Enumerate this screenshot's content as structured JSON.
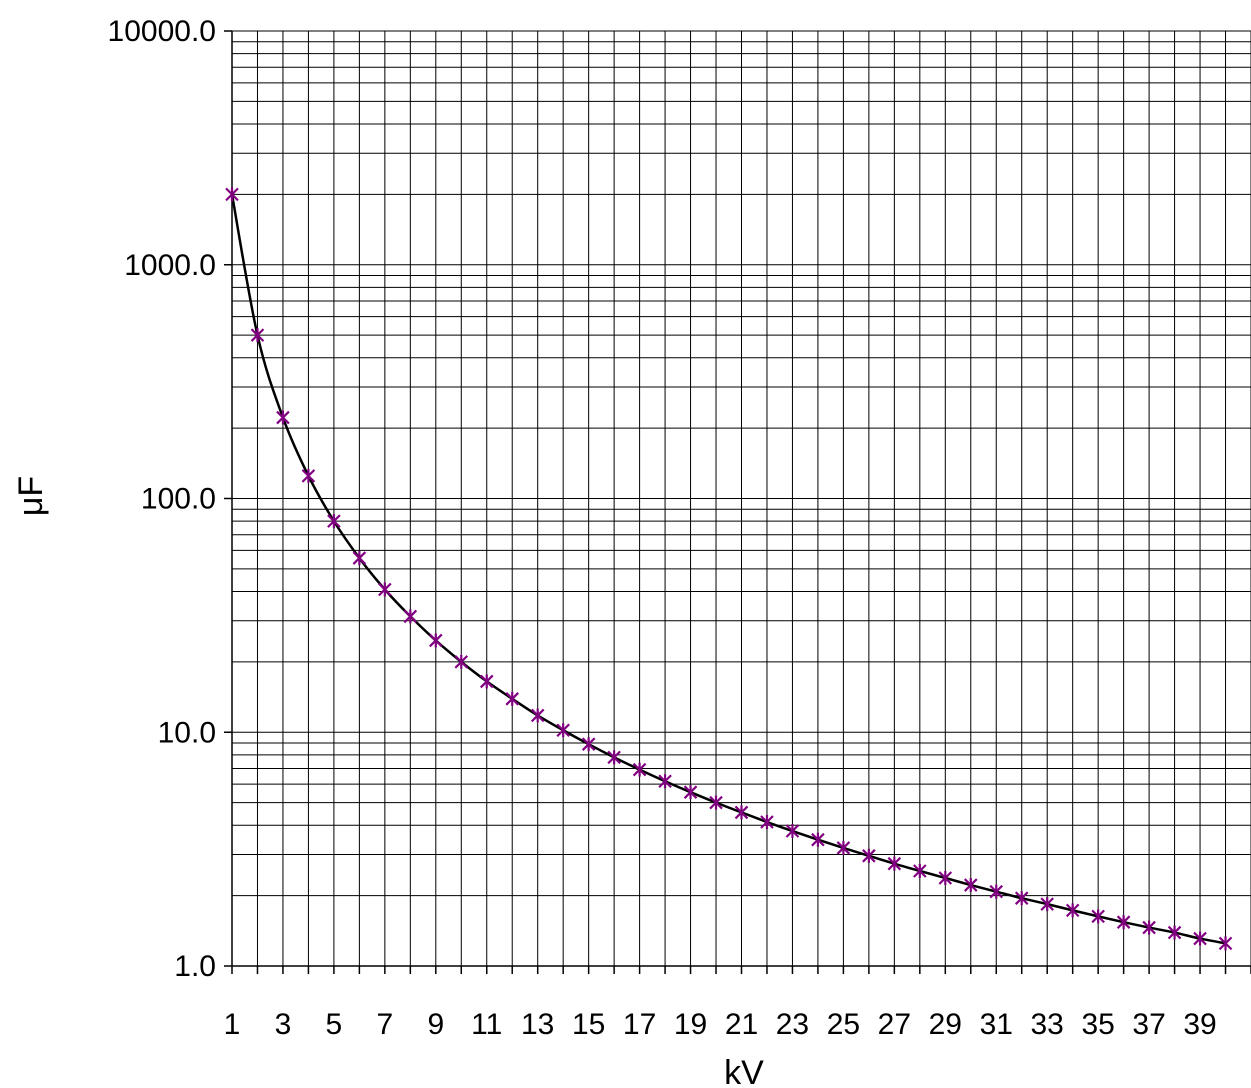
{
  "chart_data": {
    "type": "line",
    "title": "",
    "xlabel": "kV",
    "ylabel": "μF",
    "x_scale": "linear",
    "y_scale": "log",
    "xlim": [
      1,
      40
    ],
    "ylim": [
      1,
      10000
    ],
    "grid": true,
    "legend": "none",
    "x_tick_labels": [
      "1",
      "3",
      "5",
      "7",
      "9",
      "11",
      "13",
      "15",
      "17",
      "19",
      "21",
      "23",
      "25",
      "27",
      "29",
      "31",
      "33",
      "35",
      "37",
      "39"
    ],
    "y_tick_labels": [
      "10000.0",
      "1000.0",
      "100.0",
      "10.0",
      "1.0"
    ],
    "colors": {
      "marker": "#800080",
      "line": "#000000",
      "grid": "#000000"
    },
    "series": [
      {
        "x": [
          1,
          2,
          3,
          4,
          5,
          6,
          7,
          8,
          9,
          10,
          11,
          12,
          13,
          14,
          15,
          16,
          17,
          18,
          19,
          20,
          21,
          22,
          23,
          24,
          25,
          26,
          27,
          28,
          29,
          30,
          31,
          32,
          33,
          34,
          35,
          36,
          37,
          38,
          39,
          40
        ],
        "values": [
          2000,
          500,
          222,
          125,
          80,
          55.6,
          40.8,
          31.3,
          24.7,
          20,
          16.5,
          13.9,
          11.8,
          10.2,
          8.89,
          7.81,
          6.92,
          6.17,
          5.54,
          5,
          4.54,
          4.13,
          3.78,
          3.47,
          3.2,
          2.96,
          2.74,
          2.55,
          2.38,
          2.22,
          2.08,
          1.95,
          1.84,
          1.73,
          1.63,
          1.54,
          1.46,
          1.39,
          1.31,
          1.25
        ]
      }
    ]
  }
}
